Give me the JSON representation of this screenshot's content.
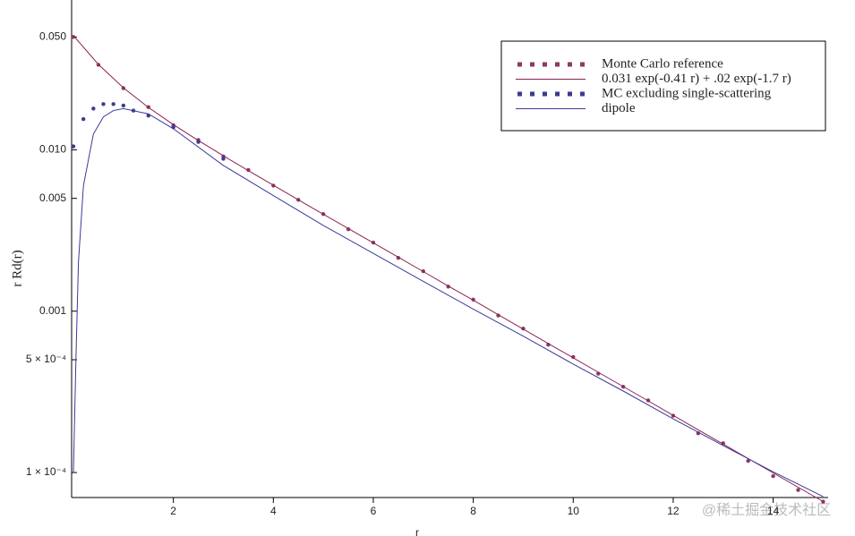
{
  "chart_data": {
    "type": "scatter",
    "y_label": "r Rd(r)",
    "x_label": "r",
    "log_y": true,
    "xlim": [
      0,
      15.1
    ],
    "ylim": [
      7e-05,
      0.07
    ],
    "xticks": [
      2,
      4,
      6,
      8,
      10,
      12,
      14
    ],
    "yticks": [
      {
        "value": 0.05,
        "label": "0.050"
      },
      {
        "value": 0.01,
        "label": "0.010"
      },
      0.005,
      0.001,
      {
        "value": 0.0005,
        "label": "5 × 10⁻⁴"
      },
      {
        "value": 0.0001,
        "label": "1 × 10⁻⁴"
      }
    ],
    "legend": "upper right",
    "watermark": "@稀土掘金技术社区",
    "series": [
      {
        "name": "Monte Carlo reference",
        "color": "#8b3a62",
        "style": "dots",
        "x": [
          0,
          0.5,
          1,
          1.5,
          2,
          2.5,
          3,
          3.5,
          4,
          4.5,
          5,
          5.5,
          6,
          6.5,
          7,
          7.5,
          8,
          8.5,
          9,
          9.5,
          10,
          10.5,
          11,
          11.5,
          12,
          12.5,
          13,
          13.5,
          14,
          14.5,
          15
        ],
        "values": [
          0.05,
          0.0336,
          0.0241,
          0.0184,
          0.0142,
          0.0115,
          0.0091,
          0.0075,
          0.006,
          0.0049,
          0.004,
          0.00322,
          0.00266,
          0.00214,
          0.00177,
          0.00142,
          0.00118,
          0.00094,
          0.00078,
          0.00062,
          0.00052,
          0.00041,
          0.00034,
          0.00028,
          0.000225,
          0.000175,
          0.000152,
          0.000118,
          9.5e-05,
          7.8e-05,
          6.6e-05
        ]
      },
      {
        "name": "0.031 exp(-0.41 r) + .02 exp(-1.7 r)",
        "color": "#8b2252",
        "style": "line",
        "x": [
          0,
          0.5,
          1,
          1.5,
          2,
          2.5,
          3,
          3.5,
          4,
          4.5,
          5,
          5.5,
          6,
          6.5,
          7,
          7.5,
          8,
          8.5,
          9,
          9.5,
          10,
          10.5,
          11,
          11.5,
          12,
          12.5,
          13,
          13.5,
          14,
          14.5,
          15
        ],
        "values": [
          0.051,
          0.0338,
          0.02422,
          0.01832,
          0.01432,
          0.01141,
          0.00918,
          0.00743,
          0.00604,
          0.0049,
          0.00399,
          0.00325,
          0.00265,
          0.00216,
          0.00176,
          0.00143,
          0.00117,
          0.00095,
          0.000774,
          0.00063,
          0.000514,
          0.000418,
          0.000341,
          0.000278,
          0.000226,
          0.000184,
          0.00015,
          0.000122,
          9.95e-05,
          8.11e-05,
          6.61e-05
        ]
      },
      {
        "name": "MC excluding single-scattering",
        "color": "#3c3c8f",
        "style": "dots",
        "x": [
          0,
          0.2,
          0.4,
          0.6,
          0.8,
          1,
          1.2,
          1.5,
          2,
          2.5,
          3
        ],
        "values": [
          0.0105,
          0.0155,
          0.018,
          0.0192,
          0.0192,
          0.0188,
          0.0175,
          0.0163,
          0.0138,
          0.0112,
          0.0088
        ]
      },
      {
        "name": "dipole",
        "color": "#3a3a9a",
        "style": "line",
        "x": [
          0,
          0.05,
          0.1,
          0.2,
          0.4,
          0.6,
          0.8,
          1,
          1.5,
          2,
          3,
          4,
          5,
          6,
          7,
          8,
          9,
          10,
          11,
          12,
          13,
          14,
          15
        ],
        "values": [
          0.0001,
          0.0005,
          0.002,
          0.006,
          0.0125,
          0.016,
          0.0175,
          0.018,
          0.0167,
          0.0135,
          0.008,
          0.0052,
          0.0034,
          0.00228,
          0.00153,
          0.00103,
          0.0007,
          0.00047,
          0.00032,
          0.000215,
          0.000147,
          0.000101,
          7.1e-05
        ]
      }
    ]
  }
}
